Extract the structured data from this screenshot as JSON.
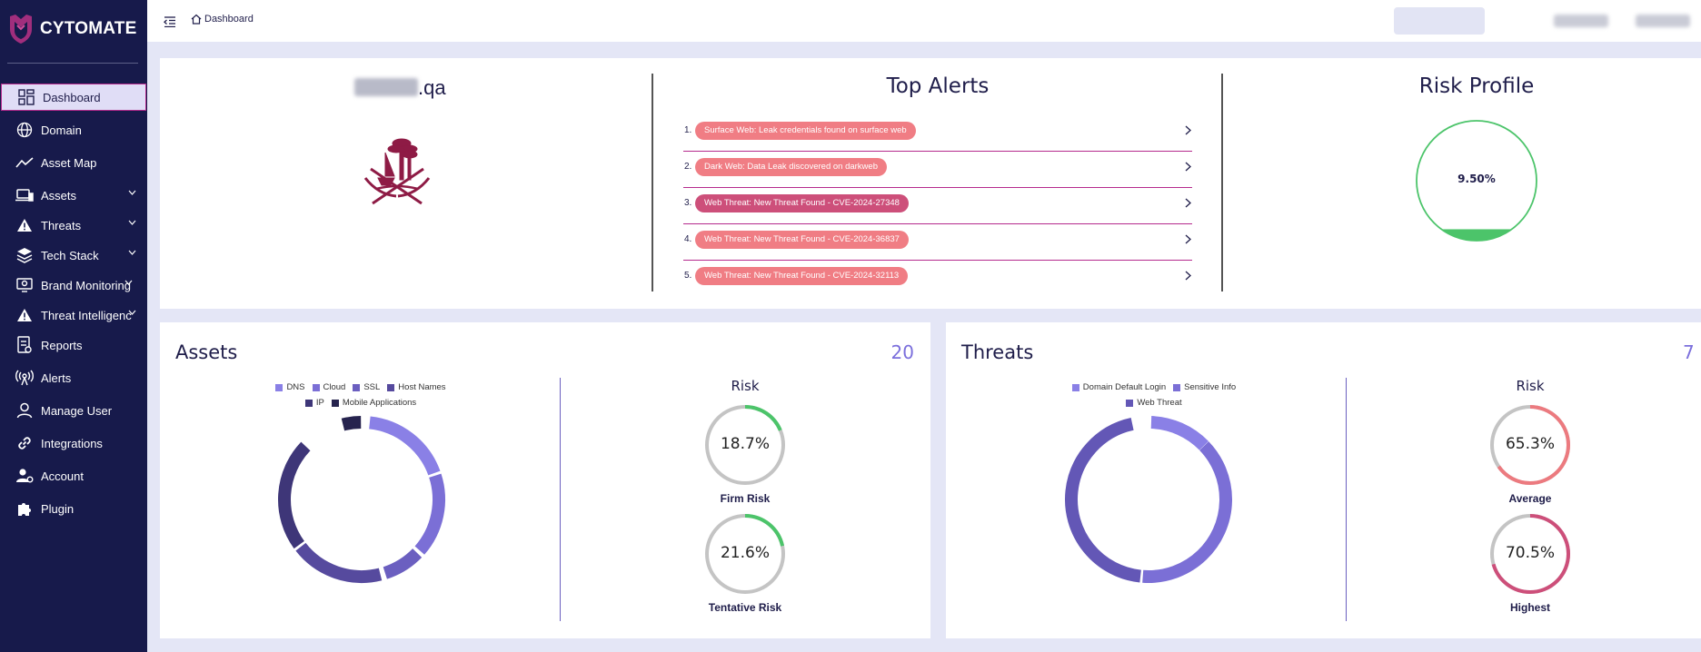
{
  "app": {
    "name": "CYTOMATE"
  },
  "sidebar": {
    "items": [
      {
        "label": "Dashboard",
        "icon": "dashboard-icon",
        "active": true
      },
      {
        "label": "Domain",
        "icon": "globe-icon"
      },
      {
        "label": "Asset Map",
        "icon": "trend-line-icon"
      },
      {
        "label": "Assets",
        "icon": "laptop-icon",
        "expandable": true
      },
      {
        "label": "Threats",
        "icon": "warning-icon",
        "expandable": true
      },
      {
        "label": "Tech Stack",
        "icon": "layers-icon",
        "expandable": true
      },
      {
        "label": "Brand Monitoring",
        "icon": "monitor-icon",
        "expandable": true
      },
      {
        "label": "Threat Intelligence",
        "icon": "warning-icon",
        "expandable": true
      },
      {
        "label": "Reports",
        "icon": "report-icon"
      },
      {
        "label": "Alerts",
        "icon": "radar-alert-icon"
      },
      {
        "label": "Manage User",
        "icon": "user-icon"
      },
      {
        "label": "Integrations",
        "icon": "link-icon"
      },
      {
        "label": "Account",
        "icon": "user-settings-icon"
      },
      {
        "label": "Plugin",
        "icon": "puzzle-icon"
      }
    ]
  },
  "topbar": {
    "breadcrumb": "Dashboard"
  },
  "overview": {
    "domain_suffix": ".qa",
    "top_alerts_title": "Top Alerts",
    "risk_profile_title": "Risk Profile",
    "risk_profile_value": "9.50%",
    "risk_profile_fraction": 0.095,
    "alerts": [
      {
        "num": "1.",
        "text": "Surface Web: Leak credentials found on surface web",
        "tone": "light"
      },
      {
        "num": "2.",
        "text": "Dark Web: Data Leak discovered on darkweb",
        "tone": "light"
      },
      {
        "num": "3.",
        "text": "Web Threat: New Threat Found - CVE-2024-27348",
        "tone": "dark"
      },
      {
        "num": "4.",
        "text": "Web Threat: New Threat Found - CVE-2024-36837",
        "tone": "light"
      },
      {
        "num": "5.",
        "text": "Web Threat: New Threat Found - CVE-2024-32113",
        "tone": "light"
      }
    ]
  },
  "assets": {
    "title": "Assets",
    "count": "20",
    "legend": [
      {
        "label": "DNS",
        "color": "#8a80e6"
      },
      {
        "label": "Cloud",
        "color": "#7b6fd6"
      },
      {
        "label": "SSL",
        "color": "#6b5fc0"
      },
      {
        "label": "Host Names",
        "color": "#564a9e"
      },
      {
        "label": "IP",
        "color": "#3e3678"
      },
      {
        "label": "Mobile Applications",
        "color": "#26234e"
      }
    ],
    "risk_heading": "Risk",
    "gauges": [
      {
        "label": "Firm Risk",
        "value": "18.7%",
        "fraction": 0.187,
        "color": "#4cc46a"
      },
      {
        "label": "Tentative Risk",
        "value": "21.6%",
        "fraction": 0.216,
        "color": "#4cc46a"
      }
    ]
  },
  "threats": {
    "title": "Threats",
    "count": "7",
    "legend": [
      {
        "label": "Domain Default Login",
        "color": "#8a80e6"
      },
      {
        "label": "Sensitive Info",
        "color": "#7b6fd6"
      },
      {
        "label": "Web Threat",
        "color": "#6357b6"
      }
    ],
    "risk_heading": "Risk",
    "gauges": [
      {
        "label": "Average",
        "value": "65.3%",
        "fraction": 0.653,
        "color": "#ec7a7f"
      },
      {
        "label": "Highest",
        "value": "70.5%",
        "fraction": 0.705,
        "color": "#cd4f7a"
      }
    ]
  }
}
